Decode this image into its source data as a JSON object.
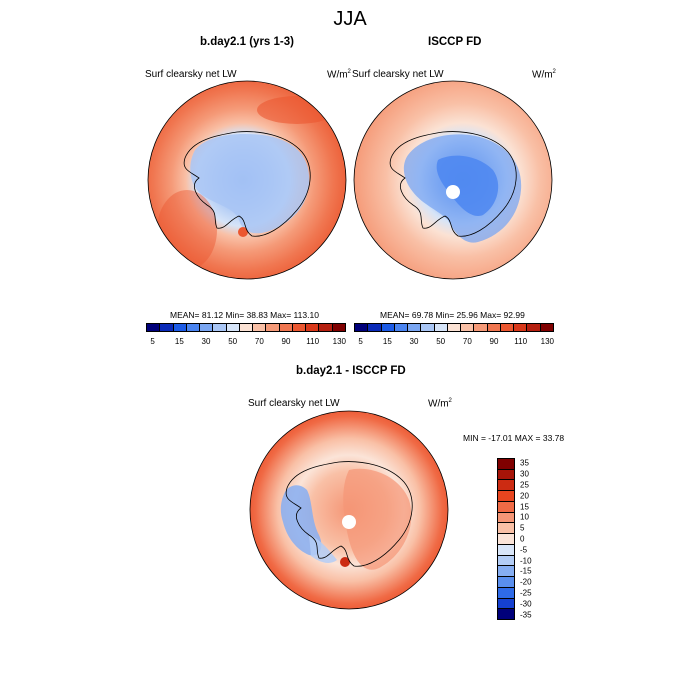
{
  "main_title": "JJA",
  "panels": [
    {
      "title": "b.day2.1 (yrs 1-3)",
      "left_label": "Surf clearsky net LW",
      "unit_base": "W/m",
      "unit_exp": "2",
      "stats": "MEAN=  81.12  Min=  38.83  Max= 113.10",
      "colorbar_ticks": [
        "5",
        "15",
        "30",
        "50",
        "70",
        "90",
        "110",
        "130"
      ]
    },
    {
      "title": "ISCCP FD",
      "left_label": "Surf clearsky net LW",
      "unit_base": "W/m",
      "unit_exp": "2",
      "stats": "MEAN=  69.78  Min=  25.96  Max=  92.99",
      "colorbar_ticks": [
        "5",
        "15",
        "30",
        "50",
        "70",
        "90",
        "110",
        "130"
      ]
    },
    {
      "title": "b.day2.1 - ISCCP FD",
      "left_label": "Surf clearsky net LW",
      "unit_base": "W/m",
      "unit_exp": "2",
      "stats": "MIN = -17.01 MAX =  33.78",
      "colorbar_ticks": [
        "35",
        "30",
        "25",
        "20",
        "15",
        "10",
        "5",
        "0",
        "-5",
        "-10",
        "-15",
        "-20",
        "-25",
        "-30",
        "-35"
      ]
    }
  ],
  "colors": {
    "abs_scale": [
      "#00007a",
      "#0a2ab8",
      "#1c5be6",
      "#4a84f0",
      "#7aa6f2",
      "#a9c6f5",
      "#d6e4f8",
      "#fbe2d4",
      "#f9c0a6",
      "#f59a78",
      "#f07650",
      "#eb5730",
      "#d8381a",
      "#b51f10",
      "#7f0000"
    ],
    "diff_scale": [
      "#7f0000",
      "#a61408",
      "#cc2b12",
      "#e8451f",
      "#f06a45",
      "#f59676",
      "#f9c0a6",
      "#fbe4d8",
      "#d9e6f9",
      "#b3cdf6",
      "#86aef2",
      "#5a8fee",
      "#2f6be8",
      "#1540d0",
      "#00007a"
    ],
    "coastline": "#000000",
    "pole_hole": "#ffffff"
  },
  "chart_data": [
    {
      "type": "heatmap",
      "title": "b.day2.1 (yrs 1-3)",
      "variable": "Surf clearsky net LW",
      "units": "W/m2",
      "projection": "south polar stereographic",
      "mean": 81.12,
      "min": 38.83,
      "max": 113.1,
      "levels": [
        5,
        10,
        15,
        20,
        30,
        40,
        50,
        60,
        70,
        80,
        90,
        100,
        110,
        120,
        130
      ]
    },
    {
      "type": "heatmap",
      "title": "ISCCP FD",
      "variable": "Surf clearsky net LW",
      "units": "W/m2",
      "projection": "south polar stereographic",
      "mean": 69.78,
      "min": 25.96,
      "max": 92.99,
      "levels": [
        5,
        10,
        15,
        20,
        30,
        40,
        50,
        60,
        70,
        80,
        90,
        100,
        110,
        120,
        130
      ]
    },
    {
      "type": "heatmap",
      "title": "b.day2.1 - ISCCP FD",
      "variable": "Surf clearsky net LW",
      "units": "W/m2",
      "projection": "south polar stereographic",
      "min": -17.01,
      "max": 33.78,
      "levels": [
        35,
        30,
        25,
        20,
        15,
        10,
        5,
        0,
        -5,
        -10,
        -15,
        -20,
        -25,
        -30,
        -35
      ]
    }
  ]
}
